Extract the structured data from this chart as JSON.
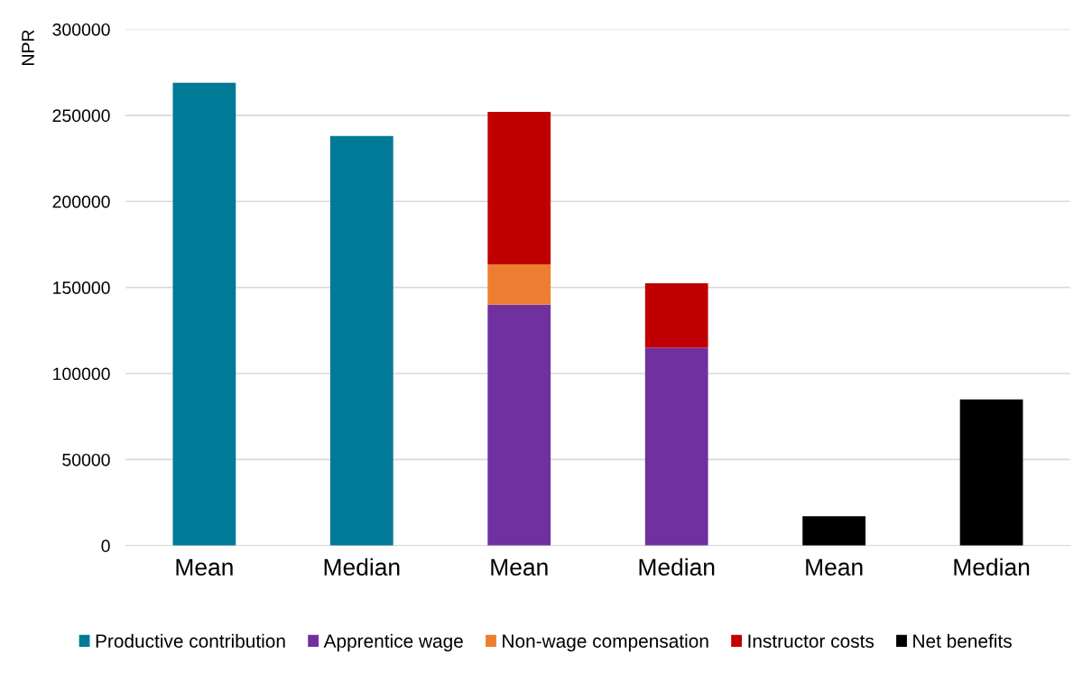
{
  "chart_data": {
    "type": "bar",
    "stacked": true,
    "ylabel": "NPR",
    "categories": [
      "Mean",
      "Median",
      "Mean",
      "Median",
      "Mean",
      "Median"
    ],
    "series": [
      {
        "name": "Productive contribution",
        "color": "#007a96",
        "values": [
          269000,
          238000,
          null,
          null,
          null,
          null
        ]
      },
      {
        "name": "Apprentice wage",
        "color": "#7030a0",
        "values": [
          null,
          null,
          140000,
          115000,
          null,
          null
        ]
      },
      {
        "name": "Non-wage compensation",
        "color": "#ed7d31",
        "values": [
          null,
          null,
          23500,
          null,
          null,
          null
        ]
      },
      {
        "name": "Instructor costs",
        "color": "#c00000",
        "values": [
          null,
          null,
          88500,
          37500,
          null,
          null
        ]
      },
      {
        "name": "Net benefits",
        "color": "#000000",
        "values": [
          null,
          null,
          null,
          null,
          17000,
          85000
        ]
      }
    ],
    "ylim": [
      0,
      300000
    ],
    "yticks": [
      0,
      50000,
      100000,
      150000,
      200000,
      250000,
      300000
    ],
    "grid": "y",
    "legend": "bottom"
  }
}
